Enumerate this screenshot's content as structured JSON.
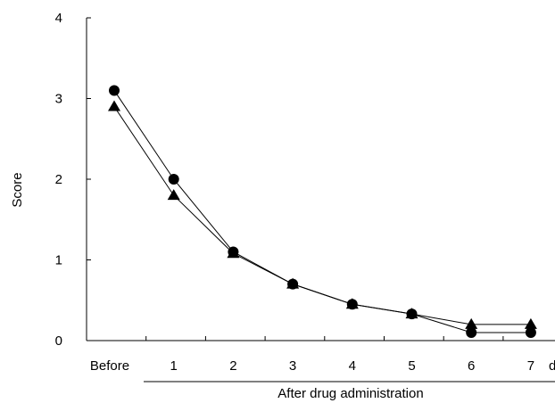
{
  "chart_data": {
    "type": "line",
    "categories": [
      "Before",
      "1",
      "2",
      "3",
      "4",
      "5",
      "6",
      "7"
    ],
    "series": [
      {
        "marker": "circle",
        "values": [
          3.1,
          2.0,
          1.1,
          0.7,
          0.45,
          0.33,
          0.1,
          0.1
        ]
      },
      {
        "marker": "triangle",
        "values": [
          2.9,
          1.8,
          1.08,
          0.7,
          0.45,
          0.33,
          0.2,
          0.2
        ]
      }
    ],
    "ylabel": "Score",
    "xlabel_group": "After drug administration",
    "x_unit_partial": "d",
    "ylim": [
      0,
      4
    ],
    "yticks": [
      "0",
      "1",
      "2",
      "3",
      "4"
    ],
    "grid": false,
    "line_color": "#000000",
    "marker_color": "#000000"
  }
}
